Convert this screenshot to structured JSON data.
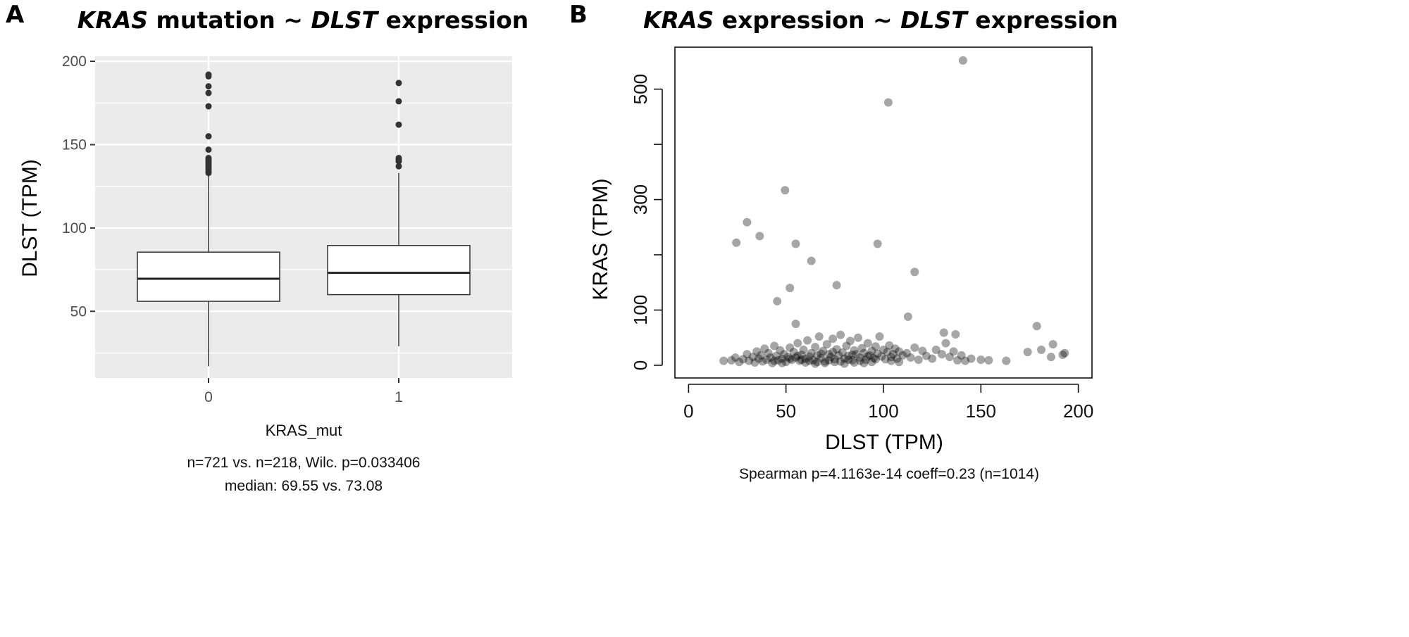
{
  "panels": {
    "a": {
      "letter": "A",
      "title_gene1": "KRAS",
      "title_mid": " mutation ~ ",
      "title_gene2": "DLST",
      "title_end": " expression"
    },
    "b": {
      "letter": "B",
      "title_gene1": "KRAS",
      "title_mid": " expression ~ ",
      "title_gene2": "DLST",
      "title_end": " expression"
    }
  },
  "chart_data": [
    {
      "type": "box",
      "xlabel": "KRAS_mut",
      "ylabel": "DLST (TPM)",
      "categories": [
        "0",
        "1"
      ],
      "yticks": [
        50,
        100,
        150,
        200
      ],
      "ylim": [
        10,
        203
      ],
      "grid": true,
      "panel_background": "#ebebeb",
      "boxes": [
        {
          "category": "0",
          "whisker_low": 17,
          "q1": 56,
          "median": 69.55,
          "q3": 85.5,
          "whisker_high": 132,
          "outliers": [
            192,
            191,
            185,
            181,
            173,
            155,
            147,
            142,
            141,
            140,
            139,
            138,
            137,
            136,
            135,
            134,
            133
          ]
        },
        {
          "category": "1",
          "whisker_low": 29,
          "q1": 60,
          "median": 73.08,
          "q3": 89.5,
          "whisker_high": 133,
          "outliers": [
            187,
            176,
            162,
            142,
            141,
            140,
            137
          ]
        }
      ],
      "notes": [
        "n=721 vs. n=218, Wilc. p=0.033406",
        "median: 69.55 vs. 73.08"
      ]
    },
    {
      "type": "scatter",
      "xlabel": "DLST (TPM)",
      "ylabel": "KRAS (TPM)",
      "xticks": [
        0,
        50,
        100,
        150,
        200
      ],
      "yticks": [
        0,
        100,
        200,
        300,
        400,
        500
      ],
      "ytick_labels": [
        "0",
        "100",
        "",
        "300",
        "",
        "500"
      ],
      "xlim": [
        -7,
        207
      ],
      "ylim": [
        -23,
        576
      ],
      "grid": false,
      "point_color": "#000000",
      "note": "Spearman p=4.1163e-14 coeff=0.23 (n=1014)",
      "points": [
        [
          140.8,
          552
        ],
        [
          102.5,
          476
        ],
        [
          49.5,
          317
        ],
        [
          30,
          259
        ],
        [
          24.5,
          222
        ],
        [
          36.5,
          234
        ],
        [
          55,
          220
        ],
        [
          63,
          189
        ],
        [
          97,
          220
        ],
        [
          116,
          169
        ],
        [
          76,
          145
        ],
        [
          52,
          140
        ],
        [
          45.5,
          116
        ],
        [
          55,
          75
        ],
        [
          112.6,
          88
        ],
        [
          178.7,
          71
        ],
        [
          131,
          59
        ],
        [
          137,
          56
        ],
        [
          150,
          10
        ],
        [
          154,
          9
        ],
        [
          163,
          8
        ],
        [
          174,
          24
        ],
        [
          181,
          28
        ],
        [
          187,
          38
        ],
        [
          186,
          15
        ],
        [
          193,
          22
        ],
        [
          192,
          19
        ],
        [
          18,
          8
        ],
        [
          22,
          9
        ],
        [
          24,
          14
        ],
        [
          26,
          6
        ],
        [
          28,
          11
        ],
        [
          30,
          20
        ],
        [
          31,
          8
        ],
        [
          33,
          15
        ],
        [
          34,
          5
        ],
        [
          35,
          25
        ],
        [
          36,
          12
        ],
        [
          37,
          18
        ],
        [
          38,
          7
        ],
        [
          39,
          30
        ],
        [
          40,
          10
        ],
        [
          41,
          22
        ],
        [
          42,
          14
        ],
        [
          43,
          4
        ],
        [
          44,
          35
        ],
        [
          45,
          17
        ],
        [
          46,
          9
        ],
        [
          47,
          27
        ],
        [
          48,
          12
        ],
        [
          49,
          20
        ],
        [
          50,
          6
        ],
        [
          51,
          15
        ],
        [
          52,
          32
        ],
        [
          53,
          10
        ],
        [
          54,
          24
        ],
        [
          55,
          14
        ],
        [
          56,
          40
        ],
        [
          57,
          8
        ],
        [
          58,
          19
        ],
        [
          59,
          28
        ],
        [
          60,
          12
        ],
        [
          61,
          45
        ],
        [
          62,
          16
        ],
        [
          63,
          22
        ],
        [
          64,
          9
        ],
        [
          65,
          33
        ],
        [
          66,
          18
        ],
        [
          67,
          52
        ],
        [
          68,
          13
        ],
        [
          69,
          26
        ],
        [
          70,
          7
        ],
        [
          71,
          38
        ],
        [
          72,
          20
        ],
        [
          73,
          15
        ],
        [
          74,
          48
        ],
        [
          75,
          11
        ],
        [
          76,
          29
        ],
        [
          77,
          18
        ],
        [
          78,
          55
        ],
        [
          79,
          23
        ],
        [
          80,
          12
        ],
        [
          81,
          35
        ],
        [
          82,
          17
        ],
        [
          83,
          44
        ],
        [
          84,
          9
        ],
        [
          85,
          27
        ],
        [
          86,
          20
        ],
        [
          87,
          50
        ],
        [
          88,
          14
        ],
        [
          89,
          31
        ],
        [
          90,
          22
        ],
        [
          91,
          10
        ],
        [
          92,
          40
        ],
        [
          93,
          18
        ],
        [
          94,
          26
        ],
        [
          95,
          13
        ],
        [
          96,
          34
        ],
        [
          97,
          21
        ],
        [
          98,
          52
        ],
        [
          99,
          16
        ],
        [
          100,
          28
        ],
        [
          101,
          11
        ],
        [
          102,
          24
        ],
        [
          103,
          36
        ],
        [
          104,
          15
        ],
        [
          105,
          20
        ],
        [
          106,
          30
        ],
        [
          107,
          12
        ],
        [
          108,
          25
        ],
        [
          110,
          18
        ],
        [
          112,
          22
        ],
        [
          114,
          14
        ],
        [
          116,
          32
        ],
        [
          118,
          10
        ],
        [
          120,
          26
        ],
        [
          122,
          17
        ],
        [
          125,
          12
        ],
        [
          127,
          28
        ],
        [
          130,
          20
        ],
        [
          132,
          40
        ],
        [
          134,
          15
        ],
        [
          136,
          25
        ],
        [
          138,
          9
        ],
        [
          140,
          18
        ],
        [
          142,
          8
        ],
        [
          145,
          12
        ],
        [
          60,
          5
        ],
        [
          65,
          3
        ],
        [
          70,
          4
        ],
        [
          75,
          6
        ],
        [
          80,
          3
        ],
        [
          85,
          5
        ],
        [
          90,
          4
        ],
        [
          58,
          10
        ],
        [
          62,
          8
        ],
        [
          66,
          6
        ],
        [
          72,
          9
        ],
        [
          78,
          7
        ],
        [
          82,
          10
        ],
        [
          88,
          8
        ],
        [
          94,
          6
        ],
        [
          48,
          4
        ],
        [
          44,
          8
        ],
        [
          52,
          12
        ],
        [
          56,
          17
        ],
        [
          68,
          21
        ],
        [
          74,
          24
        ],
        [
          84,
          19
        ],
        [
          92,
          16
        ],
        [
          96,
          11
        ],
        [
          104,
          8
        ],
        [
          108,
          6
        ]
      ]
    }
  ]
}
